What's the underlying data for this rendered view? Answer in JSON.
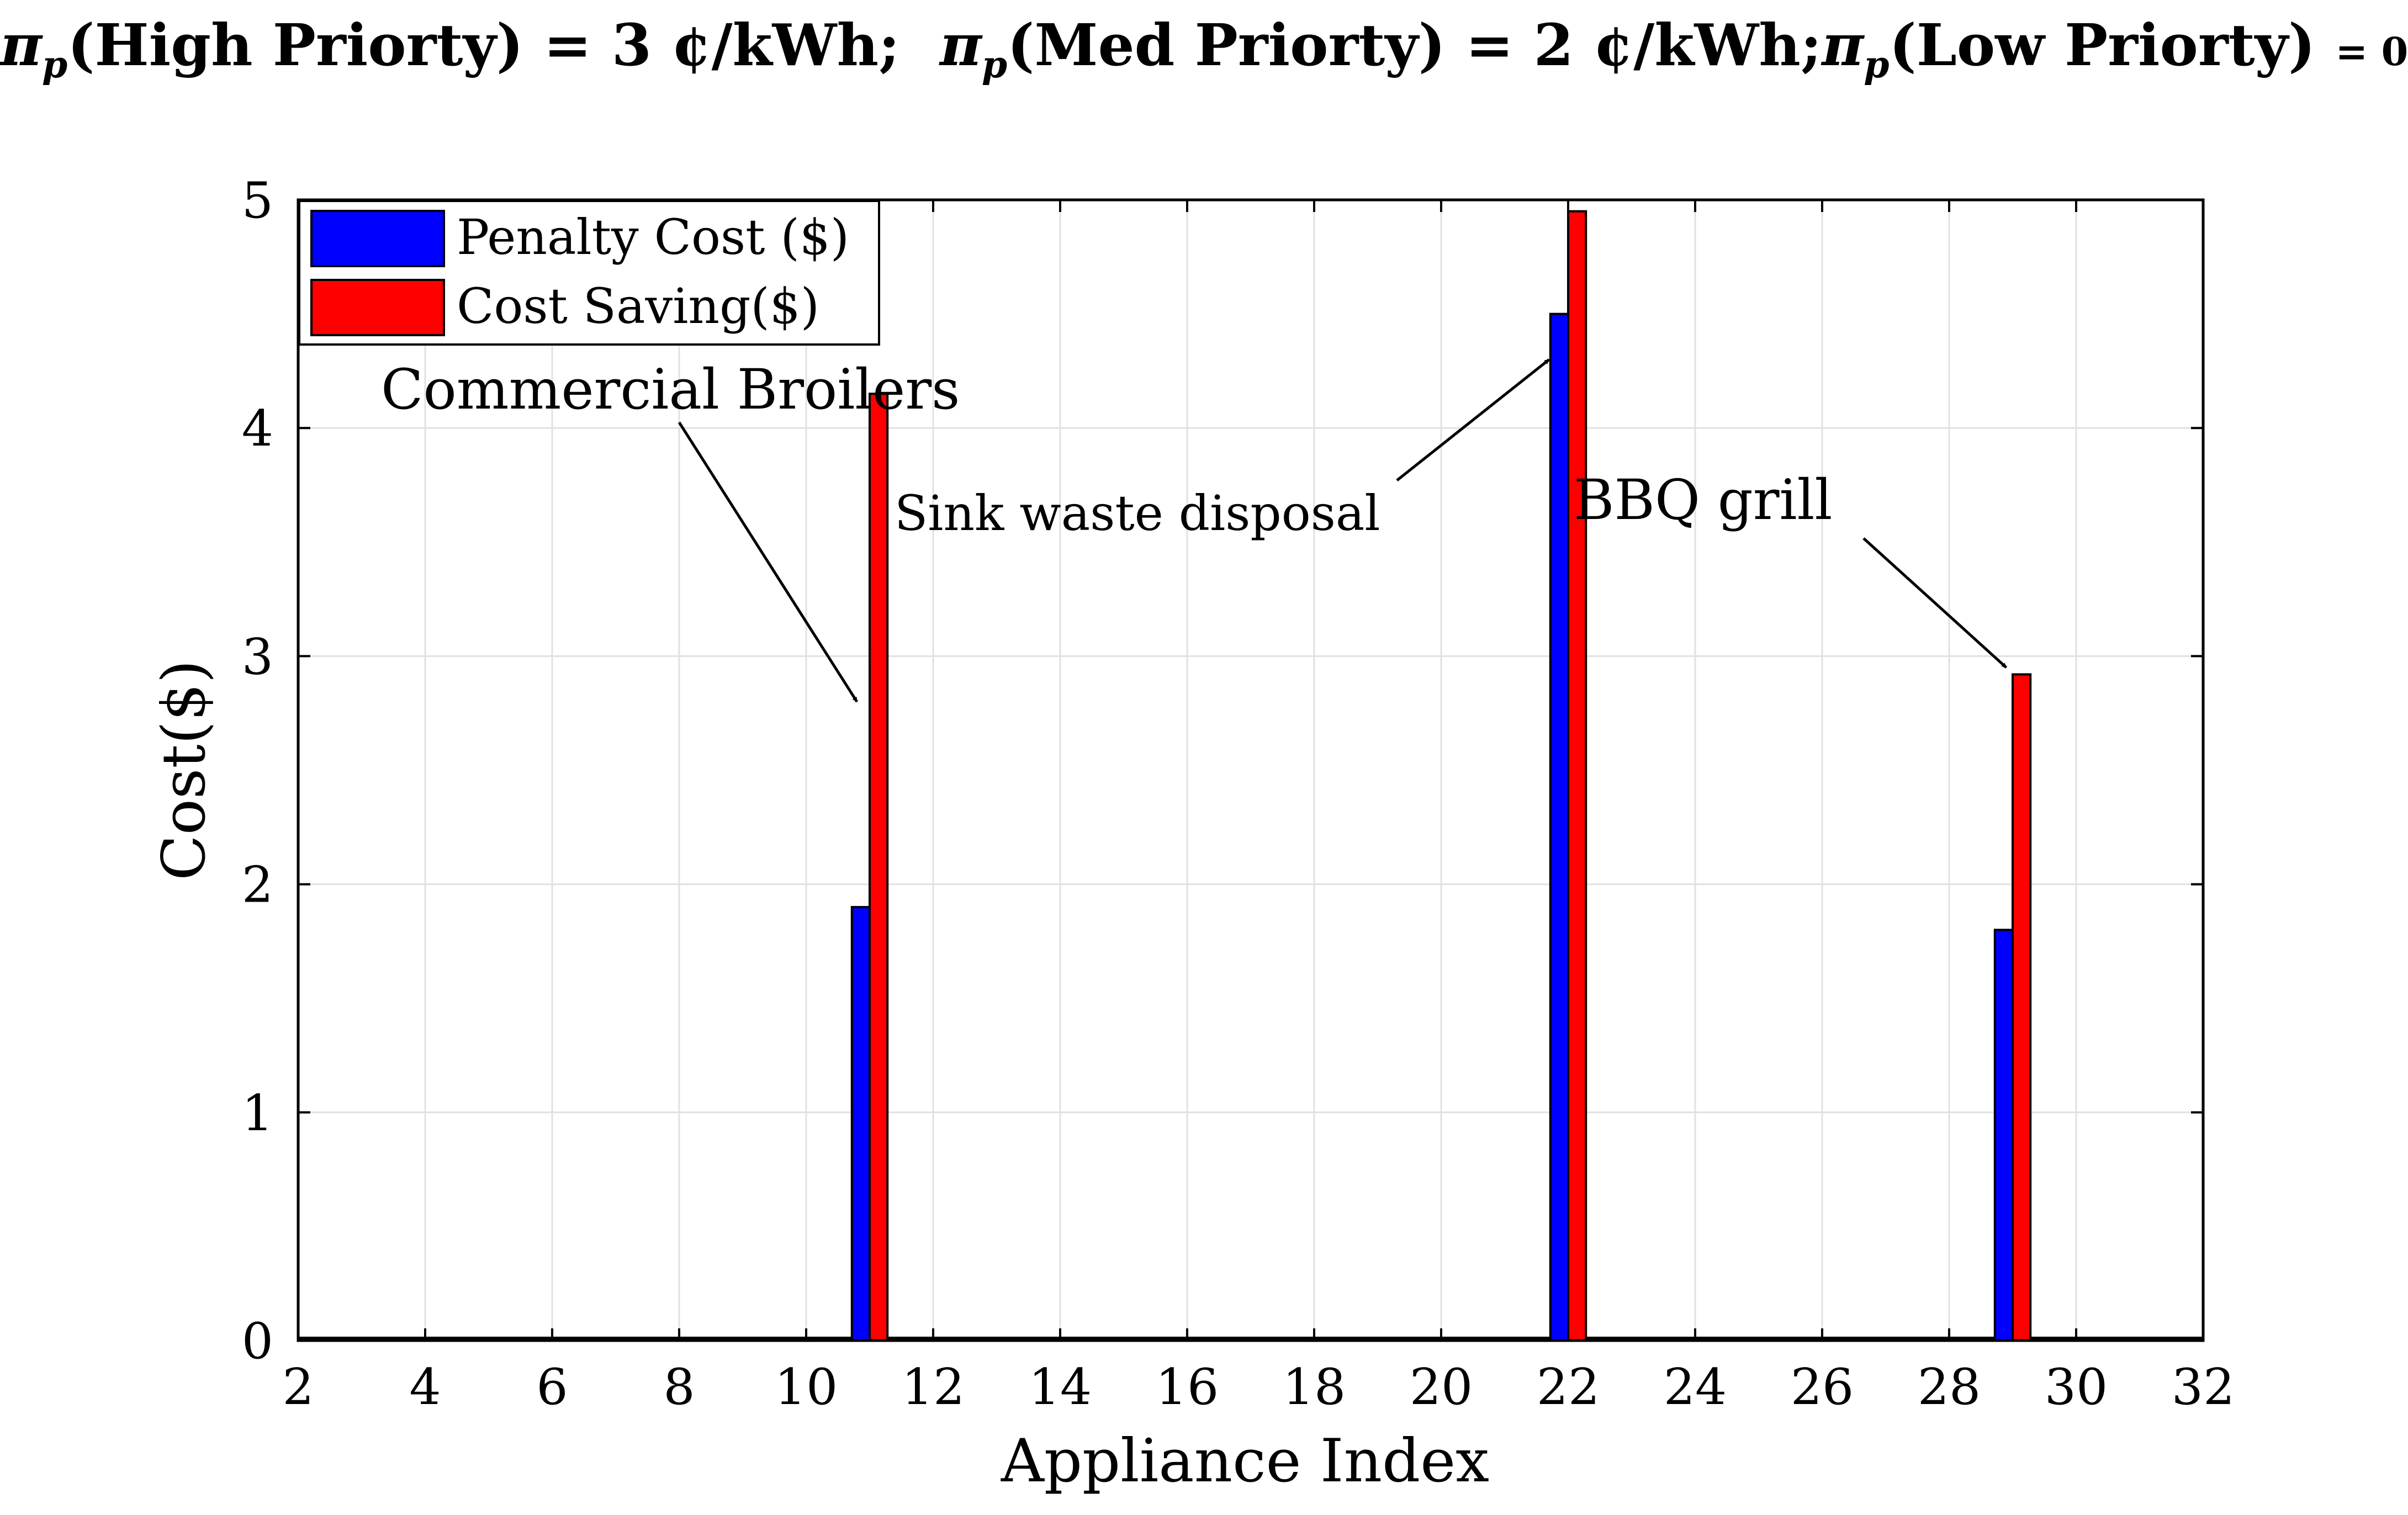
{
  "header": {
    "pi_symbol": "π",
    "pi_sub": "p",
    "high_label": "(High Priorty) = 3 ¢/kWh;",
    "med_label": "(Med Priorty) = 2 ¢/kWh;",
    "low_label": "(Low Priorty)",
    "low_value": "= 0"
  },
  "chart_data": {
    "type": "bar",
    "xlabel": "Appliance Index",
    "ylabel": "Cost($)",
    "xlim": [
      2,
      32
    ],
    "ylim": [
      0,
      5
    ],
    "xticks": [
      2,
      4,
      6,
      8,
      10,
      12,
      14,
      16,
      18,
      20,
      22,
      24,
      26,
      28,
      30,
      32
    ],
    "yticks": [
      0,
      1,
      2,
      3,
      4,
      5
    ],
    "grid": true,
    "legend_position": "top-left",
    "series": [
      {
        "name": "Penalty Cost ($)",
        "color": "#0000ff",
        "points": [
          {
            "x": 11,
            "y": 1.9
          },
          {
            "x": 22,
            "y": 4.5
          },
          {
            "x": 29,
            "y": 1.8
          }
        ]
      },
      {
        "name": "Cost Saving($)",
        "color": "#ff0000",
        "points": [
          {
            "x": 11,
            "y": 4.15
          },
          {
            "x": 22,
            "y": 4.95
          },
          {
            "x": 29,
            "y": 2.92
          }
        ]
      }
    ],
    "annotations": [
      {
        "text": "Commercial Broilers",
        "target": {
          "x": 10.8,
          "y": 2.8
        }
      },
      {
        "text": "Sink waste disposal",
        "target": {
          "x": 21.7,
          "y": 4.3
        }
      },
      {
        "text": "BBQ grill",
        "target": {
          "x": 28.9,
          "y": 2.95
        }
      }
    ]
  }
}
